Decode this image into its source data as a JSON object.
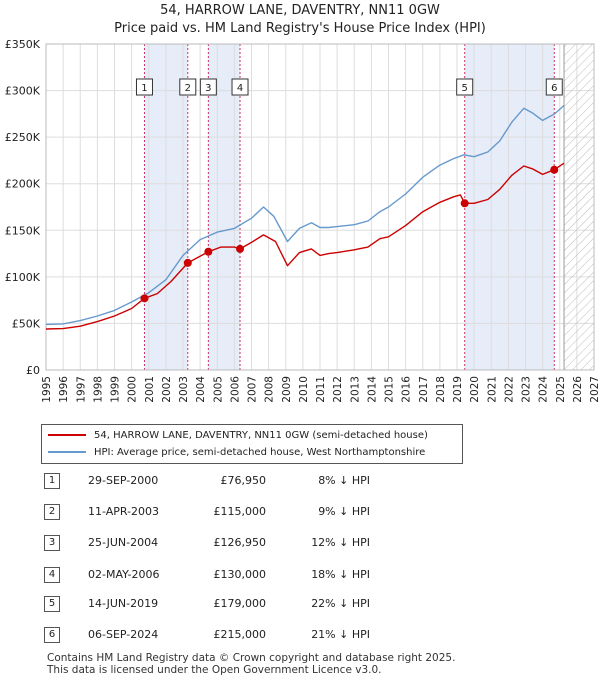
{
  "header": {
    "title_line1": "54, HARROW LANE, DAVENTRY, NN11 0GW",
    "title_line2": "Price paid vs. HM Land Registry's House Price Index (HPI)"
  },
  "colors": {
    "property": "#cc0000",
    "hpi": "#6699cc",
    "highlight": "#e6ecf8",
    "marker_line": "#cc3366"
  },
  "chart_data": {
    "type": "line",
    "title": "Price paid vs. HM Land Registry's House Price Index (HPI)",
    "xlabel": "",
    "ylabel": "",
    "xlim": [
      1995,
      2027
    ],
    "ylim": [
      0,
      350000
    ],
    "y_ticks": [
      0,
      50000,
      100000,
      150000,
      200000,
      250000,
      300000,
      350000
    ],
    "y_tick_labels": [
      "£0",
      "£50K",
      "£100K",
      "£150K",
      "£200K",
      "£250K",
      "£300K",
      "£350K"
    ],
    "x_ticks": [
      1995,
      1996,
      1997,
      1998,
      1999,
      2000,
      2001,
      2002,
      2003,
      2004,
      2005,
      2006,
      2007,
      2008,
      2009,
      2010,
      2011,
      2012,
      2013,
      2014,
      2015,
      2016,
      2017,
      2018,
      2019,
      2020,
      2021,
      2022,
      2023,
      2024,
      2025,
      2026,
      2027
    ],
    "x_tick_labels": [
      "1995",
      "1996",
      "1997",
      "1998",
      "1999",
      "2000",
      "2001",
      "2002",
      "2003",
      "2004",
      "2005",
      "2006",
      "2007",
      "2008",
      "2009",
      "2010",
      "2011",
      "2012",
      "2013",
      "2014",
      "2015",
      "2016",
      "2017",
      "2018",
      "2019",
      "2020",
      "2021",
      "2022",
      "2023",
      "2024",
      "2025",
      "2026",
      "2027"
    ],
    "future_from": 2025.25,
    "highlight_spans": [
      [
        2000.75,
        2003.28
      ],
      [
        2004.48,
        2006.33
      ],
      [
        2019.45,
        2024.68
      ]
    ],
    "series": [
      {
        "name": "HPI: Average price, semi-detached house, West Northamptonshire",
        "points": [
          [
            1995,
            49000
          ],
          [
            1996,
            49500
          ],
          [
            1997,
            53000
          ],
          [
            1998,
            58000
          ],
          [
            1999,
            64000
          ],
          [
            2000,
            73000
          ],
          [
            2001,
            83000
          ],
          [
            2002,
            97000
          ],
          [
            2003,
            123000
          ],
          [
            2004,
            140000
          ],
          [
            2005,
            148000
          ],
          [
            2006,
            152000
          ],
          [
            2007,
            163000
          ],
          [
            2007.7,
            175000
          ],
          [
            2008.3,
            165000
          ],
          [
            2009.1,
            138000
          ],
          [
            2009.8,
            152000
          ],
          [
            2010.5,
            158000
          ],
          [
            2011,
            153000
          ],
          [
            2011.5,
            153000
          ],
          [
            2012,
            154000
          ],
          [
            2013,
            156000
          ],
          [
            2013.8,
            160000
          ],
          [
            2014.5,
            170000
          ],
          [
            2015,
            175000
          ],
          [
            2016,
            189000
          ],
          [
            2017,
            207000
          ],
          [
            2018,
            220000
          ],
          [
            2018.8,
            227000
          ],
          [
            2019.4,
            231000
          ],
          [
            2020,
            229000
          ],
          [
            2020.8,
            234000
          ],
          [
            2021.5,
            246000
          ],
          [
            2022.2,
            266000
          ],
          [
            2022.9,
            281000
          ],
          [
            2023.4,
            276000
          ],
          [
            2024,
            268000
          ],
          [
            2024.7,
            275000
          ],
          [
            2025.25,
            284000
          ]
        ]
      },
      {
        "name": "54, HARROW LANE, DAVENTRY, NN11 0GW (semi-detached house)",
        "points": [
          [
            1995,
            44000
          ],
          [
            1996,
            44500
          ],
          [
            1997,
            47000
          ],
          [
            1998,
            52000
          ],
          [
            1999,
            58000
          ],
          [
            2000,
            66000
          ],
          [
            2000.75,
            76950
          ],
          [
            2001.5,
            82000
          ],
          [
            2002.3,
            95000
          ],
          [
            2003.28,
            115000
          ],
          [
            2004.48,
            126950
          ],
          [
            2005.2,
            132000
          ],
          [
            2006.0,
            132000
          ],
          [
            2006.33,
            130000
          ],
          [
            2007,
            137000
          ],
          [
            2007.7,
            145000
          ],
          [
            2008.4,
            138000
          ],
          [
            2009.1,
            112000
          ],
          [
            2009.8,
            126000
          ],
          [
            2010.5,
            130000
          ],
          [
            2011,
            123000
          ],
          [
            2011.5,
            125000
          ],
          [
            2012,
            126000
          ],
          [
            2013,
            129000
          ],
          [
            2013.8,
            132000
          ],
          [
            2014.5,
            141000
          ],
          [
            2015,
            143000
          ],
          [
            2016,
            155000
          ],
          [
            2017,
            170000
          ],
          [
            2018,
            180000
          ],
          [
            2018.8,
            186000
          ],
          [
            2019.2,
            188000
          ],
          [
            2019.45,
            179000
          ],
          [
            2020,
            179000
          ],
          [
            2020.8,
            183000
          ],
          [
            2021.5,
            194000
          ],
          [
            2022.2,
            209000
          ],
          [
            2022.9,
            219000
          ],
          [
            2023.4,
            216000
          ],
          [
            2024,
            210000
          ],
          [
            2024.68,
            215000
          ],
          [
            2025.25,
            222000
          ]
        ]
      }
    ],
    "sales": [
      {
        "num": "1",
        "x": 2000.75,
        "price": 76950
      },
      {
        "num": "2",
        "x": 2003.28,
        "price": 115000
      },
      {
        "num": "3",
        "x": 2004.48,
        "price": 126950
      },
      {
        "num": "4",
        "x": 2006.33,
        "price": 130000
      },
      {
        "num": "5",
        "x": 2019.45,
        "price": 179000
      },
      {
        "num": "6",
        "x": 2024.68,
        "price": 215000
      }
    ]
  },
  "legend": {
    "property_label": "54, HARROW LANE, DAVENTRY, NN11 0GW (semi-detached house)",
    "hpi_label": "HPI: Average price, semi-detached house, West Northamptonshire"
  },
  "sales_table": [
    {
      "num": "1",
      "date": "29-SEP-2000",
      "price": "£76,950",
      "diff": "8% ↓ HPI"
    },
    {
      "num": "2",
      "date": "11-APR-2003",
      "price": "£115,000",
      "diff": "9% ↓ HPI"
    },
    {
      "num": "3",
      "date": "25-JUN-2004",
      "price": "£126,950",
      "diff": "12% ↓ HPI"
    },
    {
      "num": "4",
      "date": "02-MAY-2006",
      "price": "£130,000",
      "diff": "18% ↓ HPI"
    },
    {
      "num": "5",
      "date": "14-JUN-2019",
      "price": "£179,000",
      "diff": "22% ↓ HPI"
    },
    {
      "num": "6",
      "date": "06-SEP-2024",
      "price": "£215,000",
      "diff": "21% ↓ HPI"
    }
  ],
  "footer": {
    "line1": "Contains HM Land Registry data © Crown copyright and database right 2025.",
    "line2": "This data is licensed under the Open Government Licence v3.0."
  }
}
